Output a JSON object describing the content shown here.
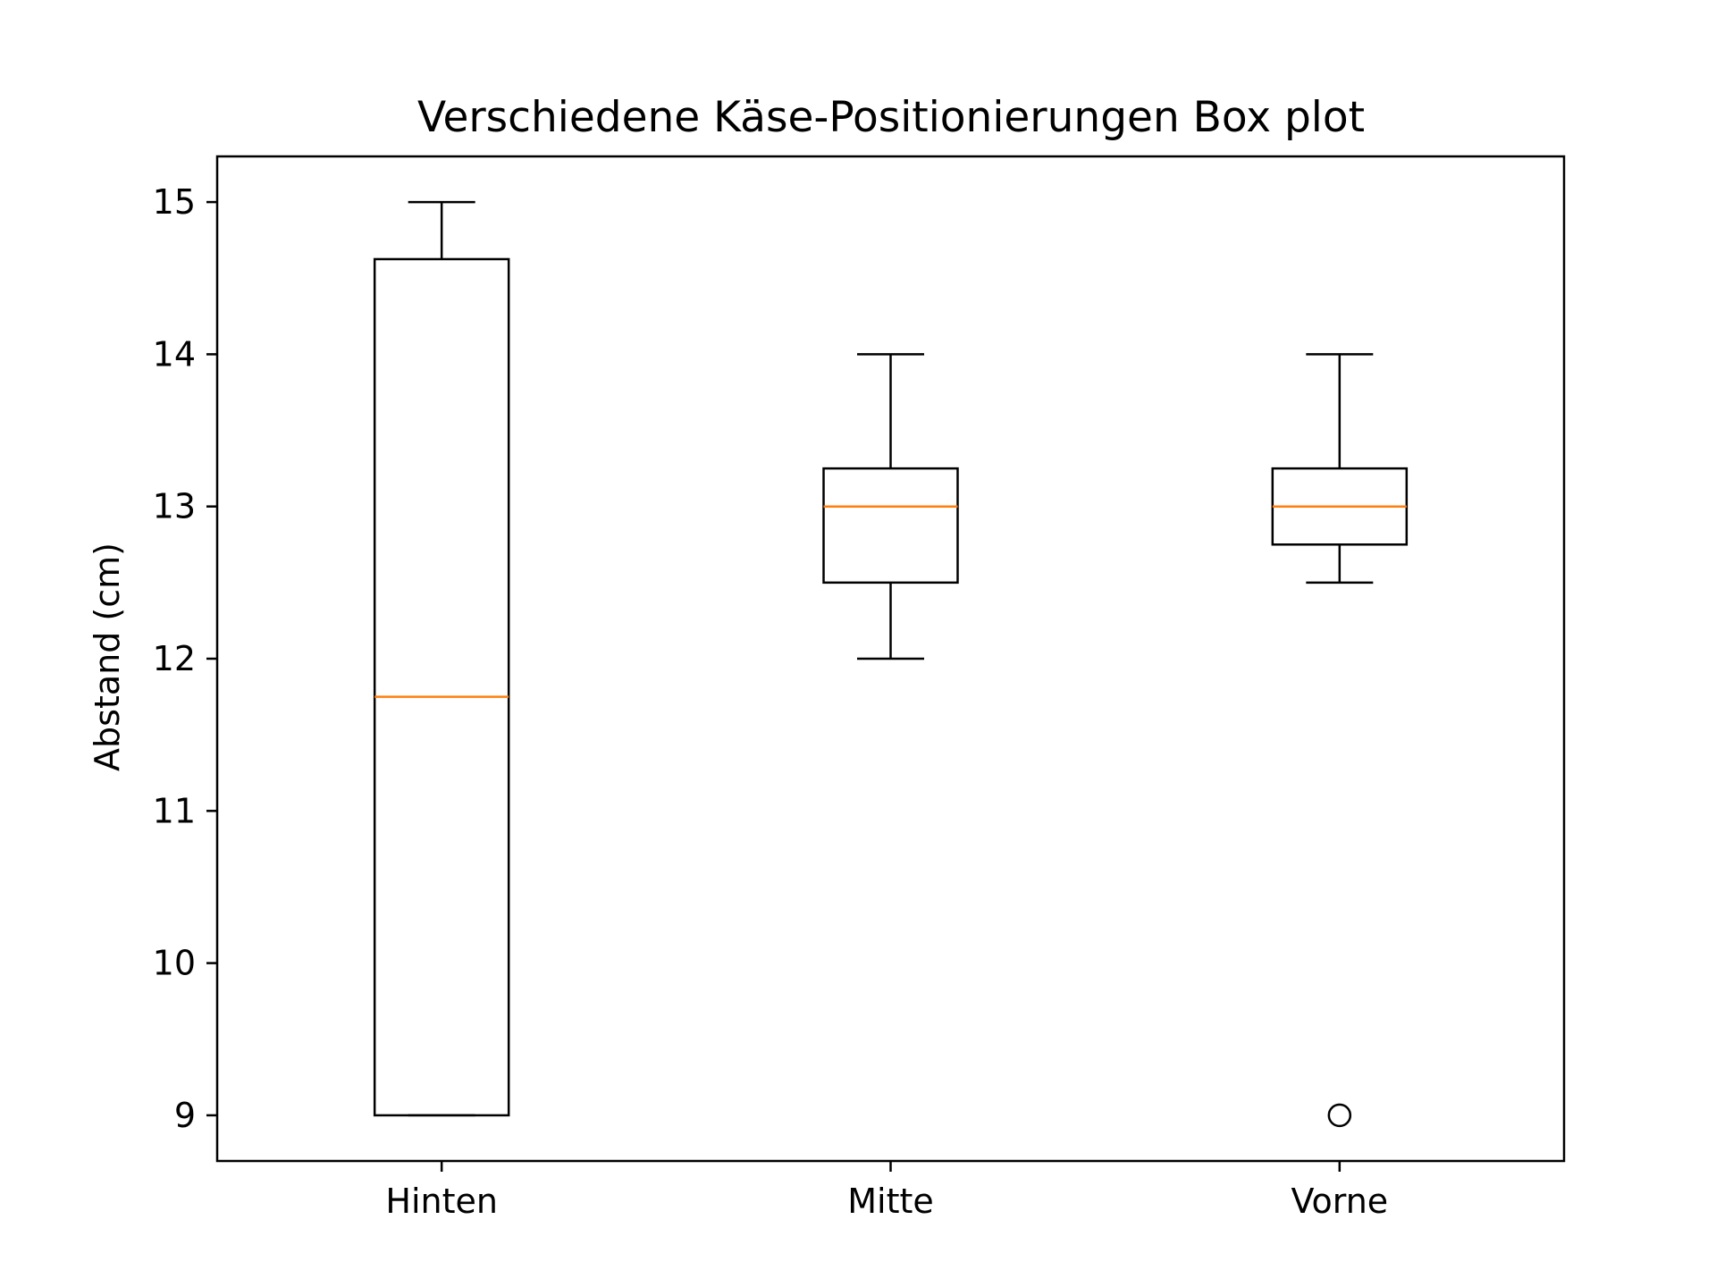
{
  "chart_data": {
    "type": "box",
    "title": "Verschiedene Käse-Positionierungen Box plot",
    "xlabel": "",
    "ylabel": "Abstand (cm)",
    "ylim": [
      8.7,
      15.3
    ],
    "yticks": [
      9,
      10,
      11,
      12,
      13,
      14,
      15
    ],
    "yticks_labels": [
      "9",
      "10",
      "11",
      "12",
      "13",
      "14",
      "15"
    ],
    "categories": [
      "Hinten",
      "Mitte",
      "Vorne"
    ],
    "grid": false,
    "colors": {
      "box": "#000000",
      "median": "#ff7f0e",
      "background": "#ffffff"
    },
    "boxes": [
      {
        "category": "Hinten",
        "whisker_low": 9,
        "q1": 9,
        "median": 11.75,
        "q3": 14.625,
        "whisker_high": 15,
        "outliers": []
      },
      {
        "category": "Mitte",
        "whisker_low": 12,
        "q1": 12.5,
        "median": 13,
        "q3": 13.25,
        "whisker_high": 14,
        "outliers": []
      },
      {
        "category": "Vorne",
        "whisker_low": 12.5,
        "q1": 12.75,
        "median": 13,
        "q3": 13.25,
        "whisker_high": 14,
        "outliers": [
          9
        ]
      }
    ]
  }
}
